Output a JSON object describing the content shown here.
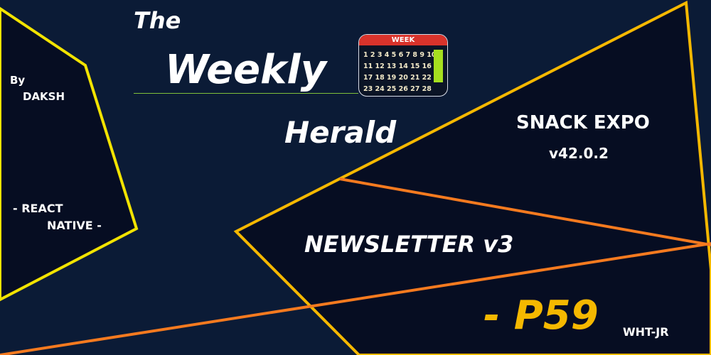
{
  "title": {
    "the": "The",
    "weekly": "Weekly",
    "herald": "Herald"
  },
  "byline": {
    "by": "By",
    "author": "DAKSH"
  },
  "framework": {
    "line1": "- REACT",
    "line2": "NATIVE -"
  },
  "event": {
    "name": "SNACK EXPO",
    "version": "v42.0.2"
  },
  "newsletter": "NEWSLETTER v3",
  "page_number": "- P59",
  "tag": "WHT-JR",
  "calendar": {
    "header": "WEEK",
    "rows": [
      "1 2 3 4 5 6 7 8 9 10",
      "11 12 13 14 15 16",
      "17 18 19 20 21 22",
      "23 24 25 26 27 28"
    ]
  },
  "colors": {
    "background": "#0b1b36",
    "panel": "#060d22",
    "yellow_outline": "#f2e300",
    "amber_outline": "#f5b800",
    "orange_line": "#f57a1f",
    "accent_page": "#f5b800",
    "rule": "#7fbf3a"
  },
  "icons": [
    "calendar-icon"
  ]
}
